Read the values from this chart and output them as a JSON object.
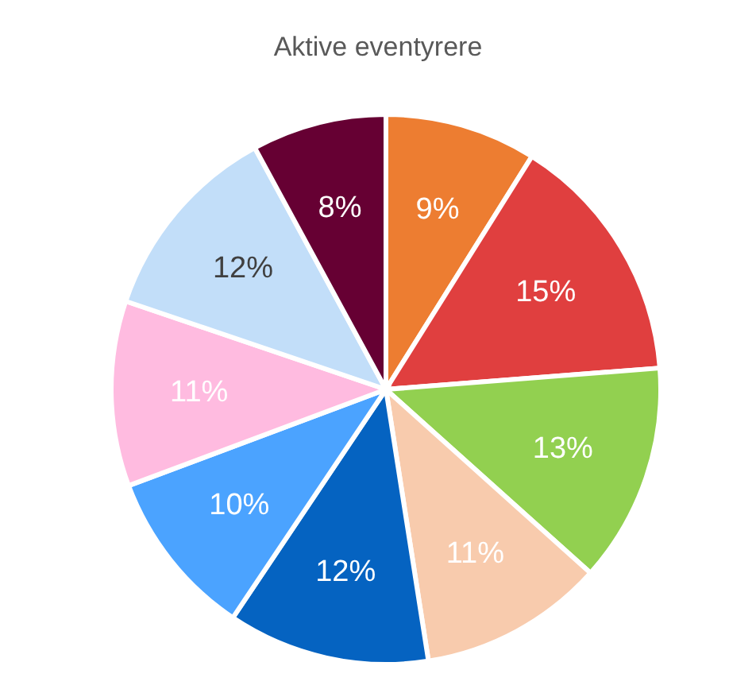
{
  "chart_data": {
    "type": "pie",
    "title": "Aktive eventyrere",
    "categories": [
      null,
      null,
      null,
      null,
      null,
      null,
      null,
      null,
      null
    ],
    "values": [
      9,
      15,
      13,
      11,
      12,
      10,
      11,
      12,
      8
    ],
    "colors": [
      "#ed7d31",
      "#e03f3f",
      "#92d050",
      "#f8cbad",
      "#0563c1",
      "#4ba3ff",
      "#ffbbe0",
      "#c2def9",
      "#660033"
    ],
    "value_labels": [
      "9%",
      "15%",
      "13%",
      "11%",
      "12%",
      "10%",
      "11%",
      "12%",
      "8%"
    ]
  }
}
